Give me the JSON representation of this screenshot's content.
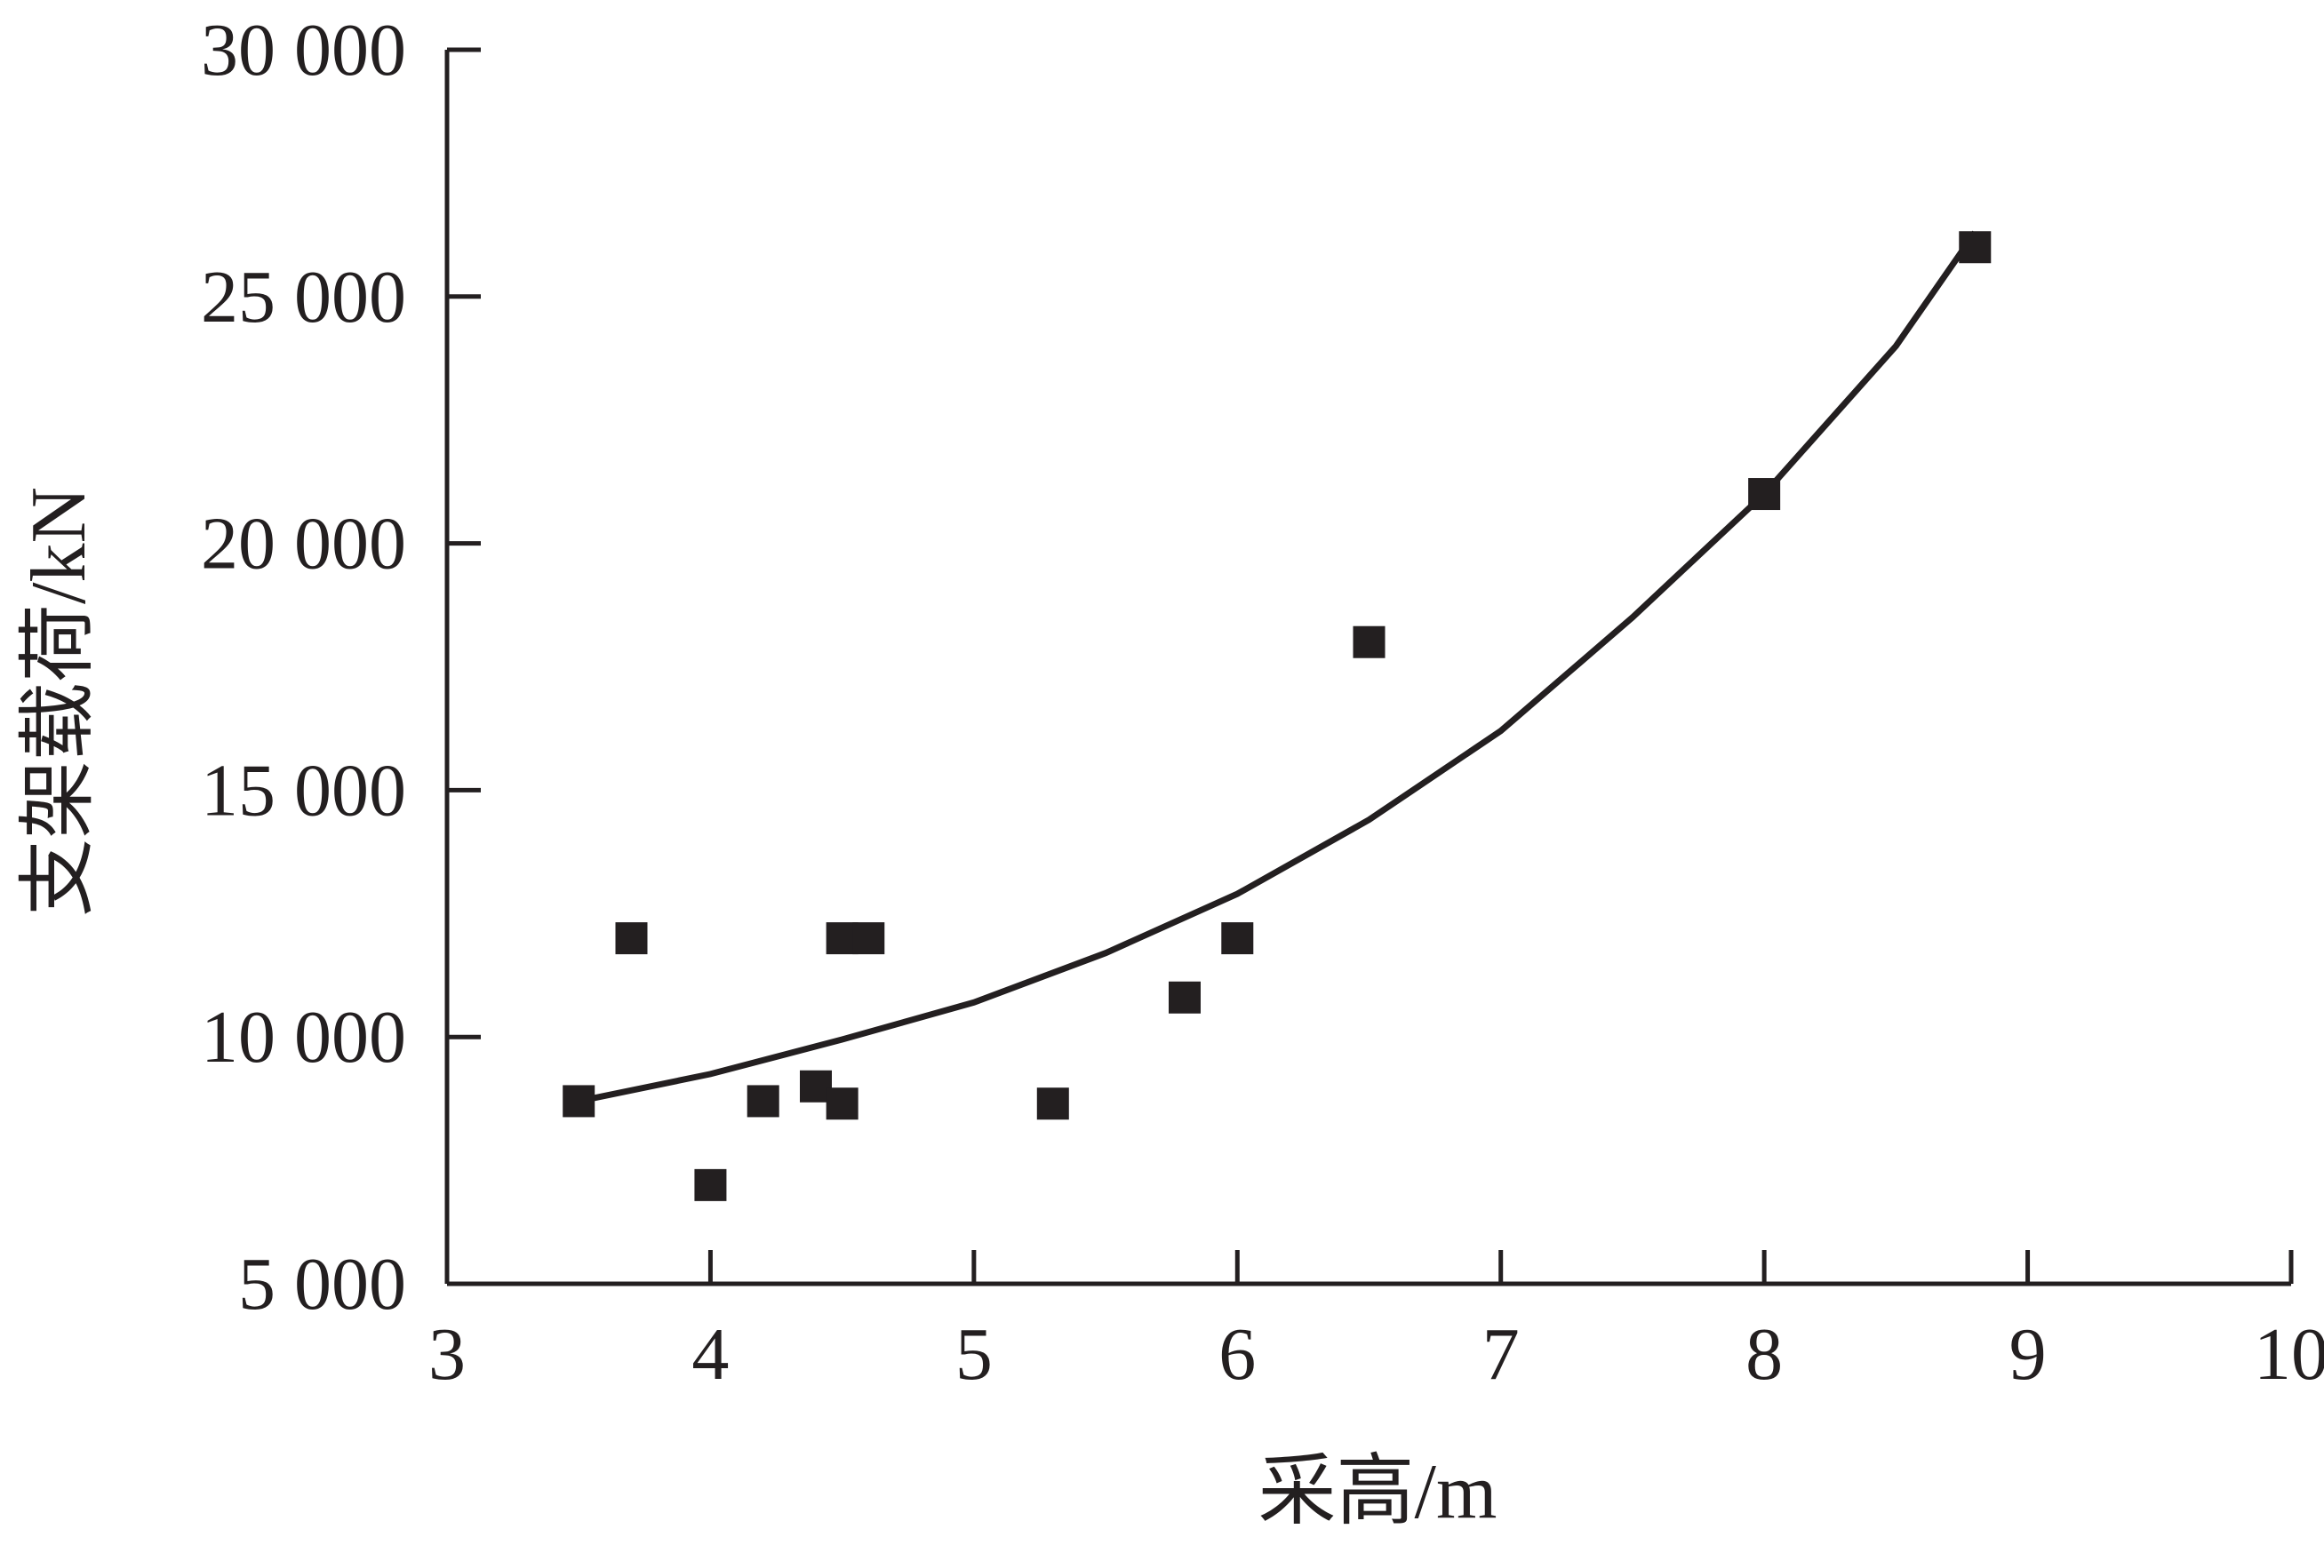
{
  "chart_data": {
    "type": "scatter",
    "title": "",
    "xlabel": "采高/m",
    "ylabel": "支架载荷/kN",
    "xlim": [
      3,
      10
    ],
    "ylim": [
      5000,
      30000
    ],
    "x_ticks": [
      3,
      4,
      5,
      6,
      7,
      8,
      9,
      10
    ],
    "x_tick_labels": [
      "3",
      "4",
      "5",
      "6",
      "7",
      "8",
      "9",
      "10"
    ],
    "y_ticks": [
      5000,
      10000,
      15000,
      20000,
      25000,
      30000
    ],
    "y_tick_labels": [
      "5 000",
      "10 000",
      "15 000",
      "20 000",
      "25 000",
      "30 000"
    ],
    "grid": false,
    "marker": "square",
    "color": "#231f20",
    "series": [
      {
        "points": [
          [
            3.5,
            8700
          ],
          [
            3.7,
            12000
          ],
          [
            4.0,
            7000
          ],
          [
            4.2,
            8700
          ],
          [
            4.4,
            9000
          ],
          [
            4.5,
            8650
          ],
          [
            4.5,
            12000
          ],
          [
            4.6,
            12000
          ],
          [
            5.3,
            8650
          ],
          [
            5.8,
            10800
          ],
          [
            6.0,
            12000
          ],
          [
            6.5,
            18000
          ],
          [
            8.0,
            21000
          ],
          [
            8.8,
            26000
          ]
        ]
      }
    ],
    "fit_curve": {
      "type": "exponential",
      "points": [
        [
          3.5,
          8700
        ],
        [
          4.0,
          9250
        ],
        [
          4.5,
          9950
        ],
        [
          5.0,
          10700
        ],
        [
          5.5,
          11700
        ],
        [
          6.0,
          12900
        ],
        [
          6.5,
          14400
        ],
        [
          7.0,
          16200
        ],
        [
          7.5,
          18500
        ],
        [
          8.0,
          21000
        ],
        [
          8.5,
          24000
        ],
        [
          8.8,
          26300
        ]
      ]
    }
  }
}
